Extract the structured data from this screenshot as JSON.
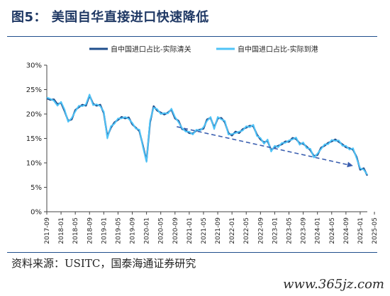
{
  "chart_data": {
    "type": "line",
    "title": "图5： 美国自华直接进口快速降低",
    "source": "资料来源：USITC，国泰海通证券研究",
    "watermark": "www.365jz.com",
    "ylim": [
      0,
      30
    ],
    "yticks": [
      "0%",
      "5%",
      "10%",
      "15%",
      "20%",
      "25%",
      "30%"
    ],
    "x_tick_labels": [
      "2017-09",
      "2018-01",
      "2018-05",
      "2018-09",
      "2019-01",
      "2019-05",
      "2019-09",
      "2020-01",
      "2020-05",
      "2020-09",
      "2021-01",
      "2021-05",
      "2021-09",
      "2022-01",
      "2022-05",
      "2022-09",
      "2023-01",
      "2023-05",
      "2023-09",
      "2024-01",
      "2024-05",
      "2024-09",
      "2025-01",
      "2025-05"
    ],
    "colors": {
      "series1": "#1f4e8c",
      "series2": "#4fc3f7",
      "trend": "#3b5fb0"
    },
    "series": [
      {
        "name": "自中国进口占比-实际清关",
        "values": [
          23.2,
          22.9,
          23.0,
          22.0,
          22.3,
          20.6,
          18.6,
          18.9,
          20.8,
          21.4,
          21.9,
          21.7,
          23.8,
          22.1,
          21.7,
          21.9,
          20.2,
          15.4,
          17.2,
          18.3,
          18.8,
          19.4,
          19.1,
          19.3,
          17.9,
          17.2,
          16.5,
          13.5,
          10.4,
          18.3,
          21.6,
          20.7,
          20.3,
          19.9,
          20.3,
          20.9,
          19.1,
          18.6,
          16.9,
          16.7,
          16.1,
          16.0,
          16.6,
          16.8,
          17.0,
          18.9,
          19.2,
          17.2,
          19.1,
          19.2,
          18.3,
          16.1,
          15.6,
          16.4,
          16.1,
          16.9,
          17.2,
          17.6,
          17.5,
          15.8,
          14.8,
          14.2,
          14.5,
          12.6,
          13.2,
          13.5,
          13.8,
          14.4,
          14.3,
          15.1,
          14.9,
          14.0,
          13.9,
          13.3,
          12.6,
          11.4,
          11.6,
          13.1,
          13.5,
          14.1,
          14.4,
          14.8,
          14.3,
          13.8,
          13.2,
          13.0,
          12.7,
          11.2,
          8.6,
          8.9,
          7.4
        ]
      },
      {
        "name": "自中国进口占比-实际到港",
        "values": [
          23.4,
          23.1,
          22.7,
          21.7,
          22.5,
          20.9,
          18.4,
          19.2,
          20.5,
          21.7,
          21.6,
          22.0,
          24.0,
          21.8,
          22.0,
          21.6,
          20.5,
          15.0,
          17.5,
          18.0,
          19.1,
          19.1,
          19.4,
          19.0,
          18.2,
          17.0,
          16.8,
          13.2,
          10.2,
          18.7,
          21.3,
          21.0,
          20.0,
          20.2,
          20.1,
          21.1,
          19.4,
          18.3,
          17.1,
          16.4,
          16.4,
          15.8,
          16.8,
          16.6,
          17.3,
          18.6,
          19.4,
          16.9,
          19.4,
          18.9,
          18.6,
          15.8,
          15.9,
          16.1,
          16.4,
          16.6,
          17.5,
          17.3,
          17.8,
          15.5,
          15.1,
          13.9,
          14.8,
          12.3,
          13.5,
          13.2,
          14.1,
          14.1,
          14.6,
          14.8,
          15.2,
          13.7,
          14.2,
          13.0,
          12.9,
          11.1,
          11.9,
          12.8,
          13.8,
          13.8,
          14.7,
          14.5,
          14.6,
          13.5,
          13.5,
          12.7,
          13.0,
          10.9,
          8.9,
          8.6,
          7.6
        ]
      }
    ]
  }
}
